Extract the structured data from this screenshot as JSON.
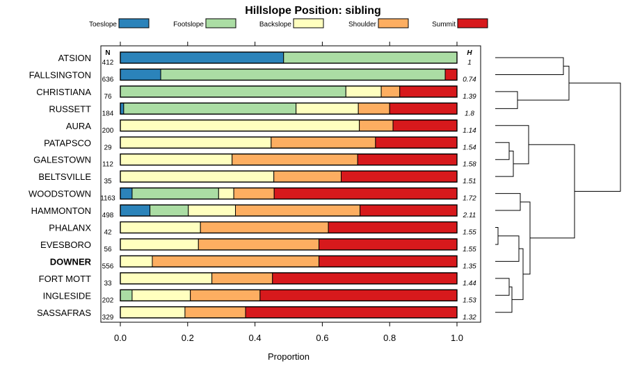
{
  "chart_data": {
    "type": "bar",
    "orientation": "horizontal",
    "stacked": true,
    "title": "Hillslope Position: sibling",
    "xlabel": "Proportion",
    "ylabel": "",
    "xlim": [
      0,
      1
    ],
    "x_ticks": [
      "0.0",
      "0.2",
      "0.4",
      "0.6",
      "0.8",
      "1.0"
    ],
    "n_header": "N",
    "h_header": "H",
    "highlight": "DOWNER",
    "legend": [
      {
        "name": "Toeslope",
        "color": "#2b83ba"
      },
      {
        "name": "Footslope",
        "color": "#abdda4"
      },
      {
        "name": "Backslope",
        "color": "#ffffbf"
      },
      {
        "name": "Shoulder",
        "color": "#fdae61"
      },
      {
        "name": "Summit",
        "color": "#d7191c"
      }
    ],
    "categories": [
      "ATSION",
      "FALLSINGTON",
      "CHRISTIANA",
      "RUSSETT",
      "AURA",
      "PATAPSCO",
      "GALESTOWN",
      "BELTSVILLE",
      "WOODSTOWN",
      "HAMMONTON",
      "PHALANX",
      "EVESBORO",
      "DOWNER",
      "FORT MOTT",
      "INGLESIDE",
      "SASSAFRAS"
    ],
    "n": [
      "412",
      "636",
      "76",
      "184",
      "200",
      "29",
      "112",
      "35",
      "1163",
      "498",
      "42",
      "56",
      "556",
      "33",
      "202",
      "329"
    ],
    "h": [
      "1",
      "0.74",
      "1.39",
      "1.8",
      "1.14",
      "1.54",
      "1.58",
      "1.51",
      "1.72",
      "2.11",
      "1.55",
      "1.55",
      "1.35",
      "1.44",
      "1.53",
      "1.32"
    ],
    "series": [
      {
        "name": "Toeslope",
        "values": [
          0.485,
          0.12,
          0,
          0.01,
          0,
          0,
          0,
          0,
          0.035,
          0.088,
          0,
          0,
          0,
          0,
          0,
          0
        ]
      },
      {
        "name": "Footslope",
        "values": [
          0.515,
          0.845,
          0.67,
          0.512,
          0,
          0,
          0,
          0,
          0.257,
          0.114,
          0,
          0,
          0,
          0,
          0.035,
          0
        ]
      },
      {
        "name": "Backslope",
        "values": [
          0,
          0,
          0.105,
          0.185,
          0.71,
          0.448,
          0.332,
          0.456,
          0.045,
          0.14,
          0.238,
          0.232,
          0.095,
          0.272,
          0.173,
          0.192
        ]
      },
      {
        "name": "Shoulder",
        "values": [
          0,
          0,
          0.055,
          0.093,
          0.1,
          0.31,
          0.373,
          0.2,
          0.12,
          0.37,
          0.38,
          0.358,
          0.495,
          0.18,
          0.207,
          0.18
        ]
      },
      {
        "name": "Summit",
        "values": [
          0,
          0.035,
          0.17,
          0.2,
          0.19,
          0.242,
          0.295,
          0.344,
          0.543,
          0.288,
          0.382,
          0.41,
          0.41,
          0.548,
          0.585,
          0.628
        ]
      }
    ],
    "dendrogram": {
      "type": "hierarchical-clustering",
      "leaf_order": [
        "ATSION",
        "FALLSINGTON",
        "CHRISTIANA",
        "RUSSETT",
        "AURA",
        "PATAPSCO",
        "GALESTOWN",
        "BELTSVILLE",
        "WOODSTOWN",
        "HAMMONTON",
        "PHALANX",
        "EVESBORO",
        "DOWNER",
        "FORT MOTT",
        "INGLESIDE",
        "SASSAFRAS"
      ],
      "merges": [
        {
          "a": "L0",
          "b": "L1",
          "height": 0.49
        },
        {
          "a": "L2",
          "b": "L3",
          "height": 0.16
        },
        {
          "a": "M0",
          "b": "M1",
          "height": 0.53
        },
        {
          "a": "L5",
          "b": "L6",
          "height": 0.1
        },
        {
          "a": "M3",
          "b": "L7",
          "height": 0.13
        },
        {
          "a": "L4",
          "b": "M4",
          "height": 0.24
        },
        {
          "a": "L10",
          "b": "L11",
          "height": 0.02
        },
        {
          "a": "M6",
          "b": "L12",
          "height": 0.17
        },
        {
          "a": "L8",
          "b": "L9",
          "height": 0.18
        },
        {
          "a": "L13",
          "b": "L14",
          "height": 0.1
        },
        {
          "a": "M9",
          "b": "L15",
          "height": 0.12
        },
        {
          "a": "M7",
          "b": "M10",
          "height": 0.2
        },
        {
          "a": "M8",
          "b": "M11",
          "height": 0.25
        },
        {
          "a": "M5",
          "b": "M12",
          "height": 0.57
        },
        {
          "a": "M2",
          "b": "M13",
          "height": 0.9
        }
      ],
      "max_height": 0.9
    }
  }
}
